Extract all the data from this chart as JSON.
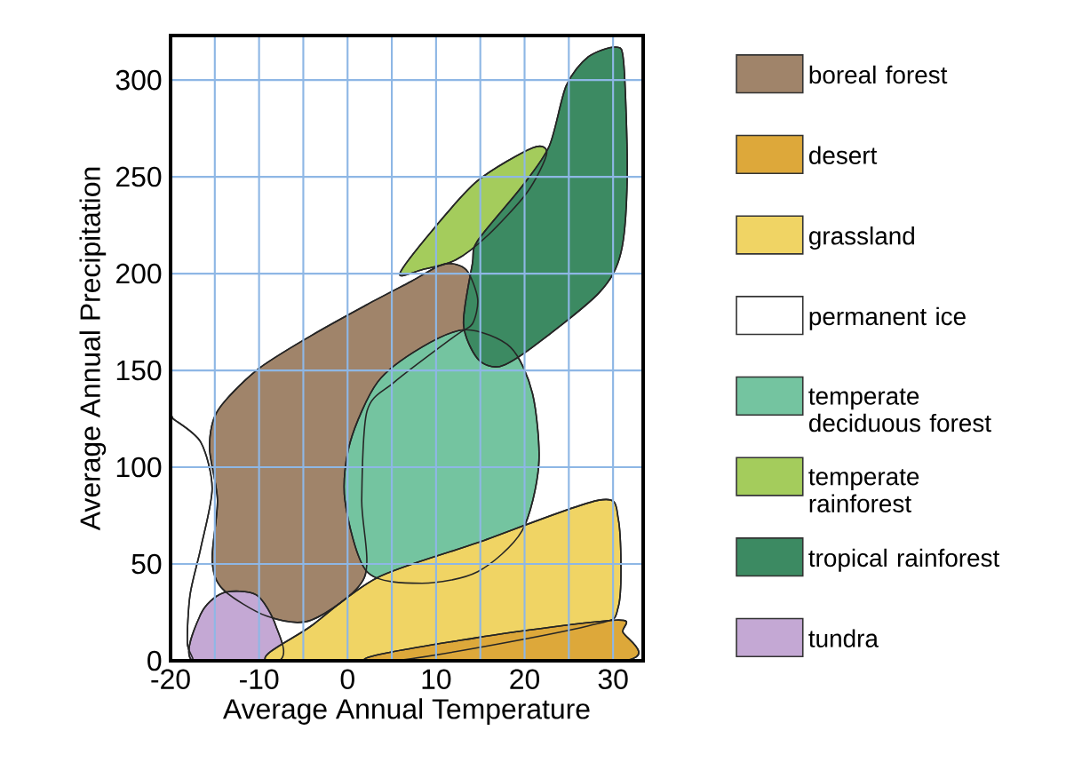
{
  "chart_data": {
    "type": "area",
    "xlabel": "Average Annual Temperature",
    "ylabel": "Average Annual Precipitation",
    "xlim": [
      -20,
      33.4
    ],
    "ylim": [
      0,
      323
    ],
    "xticks": [
      -20,
      {
        "value": -15,
        "label": null
      },
      -10,
      {
        "value": -5,
        "label": null
      },
      0,
      {
        "value": 5,
        "label": null
      },
      10,
      {
        "value": 15,
        "label": null
      },
      20,
      {
        "value": 25,
        "label": null
      },
      30
    ],
    "yticks": [
      0,
      50,
      100,
      150,
      200,
      250,
      300
    ],
    "grid": true,
    "legend": "right",
    "series": [
      {
        "name": "boreal forest",
        "color": "#a0846a",
        "x": [
          -15.6,
          -14.7,
          -10.3,
          -4.1,
          2.2,
          7.2,
          10.9,
          13.4,
          14.7,
          14.1,
          12.2,
          5.3,
          2.2,
          1.6,
          1.9,
          -4.1,
          -9.1,
          -14.1,
          -15.3,
          -14.7
        ],
        "values": [
          110,
          129,
          150,
          168,
          184,
          196,
          205,
          202,
          187,
          174,
          168,
          144,
          129,
          83,
          43,
          21,
          23,
          37,
          52,
          83
        ]
      },
      {
        "name": "desert",
        "color": "#dda83a",
        "x": [
          2.2,
          14.7,
          30.3,
          31.1,
          31.1
        ],
        "values": [
          0,
          12,
          21,
          15,
          0
        ]
      },
      {
        "name": "grassland",
        "color": "#f0d464",
        "x": [
          -9.1,
          -4.1,
          3.4,
          14.7,
          28.4,
          30.6,
          30.6,
          27.2,
          14.7,
          5.3
        ],
        "values": [
          0,
          18,
          43,
          61,
          83,
          73,
          28,
          18,
          null,
          0
        ]
      },
      {
        "name": "permanent ice",
        "color": "#ffffff",
        "x": [
          -20,
          -19.7,
          -16.6,
          -15.3,
          -16.6,
          -17.8,
          -18.1,
          -17.5,
          -20
        ],
        "values": [
          126,
          125,
          113,
          89,
          58,
          34,
          9,
          0,
          0
        ]
      },
      {
        "name": "temperate deciduous forest",
        "color": "#74c4a0",
        "x": [
          13.4,
          18.4,
          20.9,
          21.6,
          19.7,
          14.7,
          8.4,
          2.2,
          -0.3,
          0.3,
          3.4,
          8.4
        ],
        "values": [
          171,
          162,
          138,
          101,
          67,
          46,
          40,
          46,
          83,
          113,
          144,
          162
        ]
      },
      {
        "name": "temperate rainforest",
        "color": "#a4cc5c",
        "x": [
          5.9,
          9.7,
          14.7,
          20.9,
          22.5,
          20.3,
          15.9,
          12.2,
          8.4
        ],
        "values": [
          200,
          223,
          248,
          265,
          262,
          242,
          220,
          207,
          202
        ]
      },
      {
        "name": "tropical rainforest",
        "color": "#3c8a62",
        "x": [
          14.1,
          14.7,
          19.7,
          22.8,
          24.7,
          27.2,
          30.3,
          31.2,
          31.6,
          30.9,
          28.4,
          20.9,
          17.2,
          14.7,
          13.1
        ],
        "values": [
          205,
          217,
          245,
          266,
          297,
          312,
          317,
          309,
          251,
          211,
          190,
          162,
          152,
          156,
          174
        ]
      },
      {
        "name": "tundra",
        "color": "#c4a8d4",
        "x": [
          -17.5,
          -16.6,
          -14.1,
          -10.3,
          -8.1,
          -7.8
        ],
        "values": [
          0,
          24,
          35,
          34,
          18,
          0
        ]
      }
    ]
  }
}
